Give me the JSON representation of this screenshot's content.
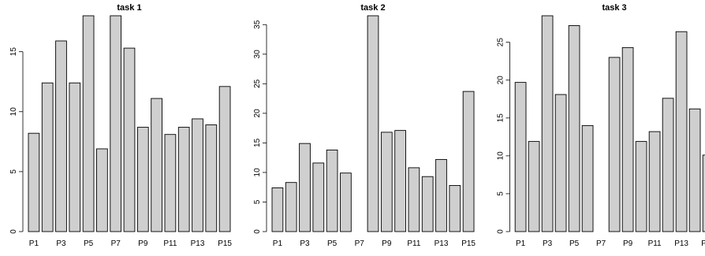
{
  "chart_data": [
    {
      "type": "bar",
      "title": "task 1",
      "categories": [
        "P1",
        "P2",
        "P3",
        "P4",
        "P5",
        "P6",
        "P7",
        "P8",
        "P9",
        "P10",
        "P11",
        "P12",
        "P13",
        "P14",
        "P15"
      ],
      "x_tick_labels": [
        "P1",
        "P3",
        "P5",
        "P7",
        "P9",
        "P11",
        "P13",
        "P15"
      ],
      "values": [
        8.2,
        12.4,
        15.9,
        12.4,
        18.0,
        6.9,
        18.0,
        15.3,
        8.7,
        11.1,
        8.1,
        8.7,
        9.4,
        8.9,
        12.1
      ],
      "ylim": [
        0,
        18.0
      ],
      "y_ticks": [
        0,
        5,
        10,
        15
      ],
      "bar_color": "#cfcfcf",
      "grid": false
    },
    {
      "type": "bar",
      "title": "task 2",
      "categories": [
        "P1",
        "P2",
        "P3",
        "P4",
        "P5",
        "P6",
        "P7",
        "P8",
        "P9",
        "P10",
        "P11",
        "P12",
        "P13",
        "P14",
        "P15"
      ],
      "x_tick_labels": [
        "P1",
        "P3",
        "P5",
        "P7",
        "P9",
        "P11",
        "P13",
        "P15"
      ],
      "values": [
        7.4,
        8.3,
        14.9,
        11.6,
        13.8,
        9.9,
        0,
        36.5,
        16.8,
        17.1,
        10.8,
        9.3,
        12.2,
        7.8,
        23.7
      ],
      "ylim": [
        0,
        36.5
      ],
      "y_ticks": [
        0,
        5,
        10,
        15,
        20,
        25,
        30,
        35
      ],
      "bar_color": "#cfcfcf",
      "grid": false
    },
    {
      "type": "bar",
      "title": "task 3",
      "categories": [
        "P1",
        "P2",
        "P3",
        "P4",
        "P5",
        "P6",
        "P7",
        "P8",
        "P9",
        "P10",
        "P11",
        "P12",
        "P13",
        "P14",
        "P15"
      ],
      "x_tick_labels": [
        "P1",
        "P3",
        "P5",
        "P7",
        "P9",
        "P11",
        "P13",
        "P15"
      ],
      "values": [
        19.7,
        11.9,
        28.5,
        18.1,
        27.2,
        14.0,
        0,
        23.0,
        24.3,
        11.9,
        13.2,
        17.6,
        26.4,
        16.2,
        10.1
      ],
      "ylim": [
        0,
        28.5
      ],
      "y_ticks": [
        0,
        5,
        10,
        15,
        20,
        25
      ],
      "bar_color": "#cfcfcf",
      "grid": false
    }
  ]
}
